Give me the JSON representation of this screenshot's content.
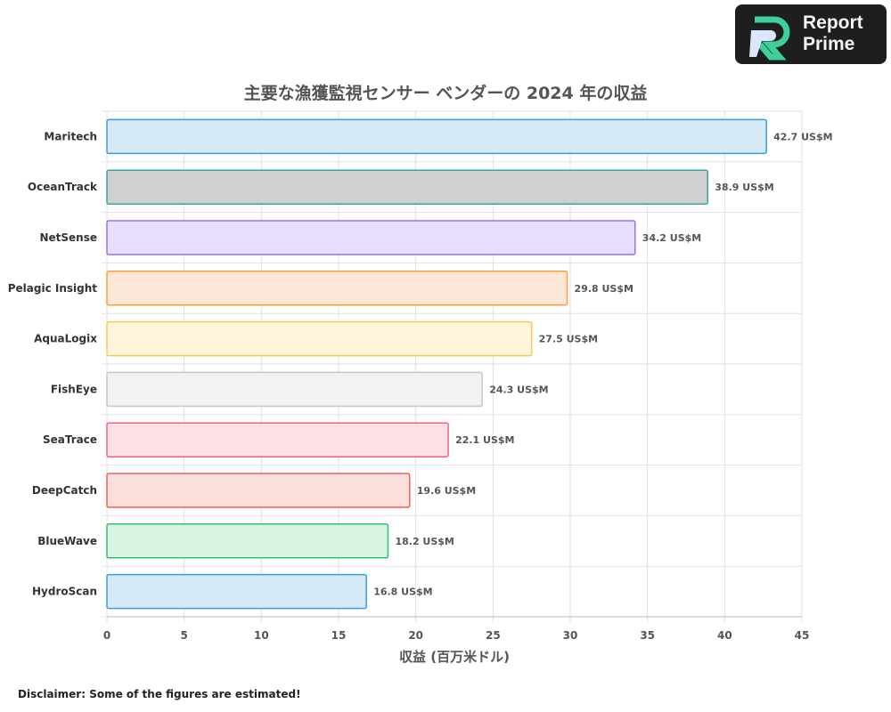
{
  "logo": {
    "line1": "Report",
    "line2": "Prime"
  },
  "disclaimer": "Disclaimer: Some of the figures are estimated!",
  "chart_data": {
    "type": "bar",
    "orientation": "horizontal",
    "title": "主要な漁獲監視センサー ベンダーの 2024 年の収益",
    "xlabel": "収益 (百万米ドル)",
    "ylabel": "",
    "xlim": [
      0,
      45
    ],
    "xticks": [
      0,
      5,
      10,
      15,
      20,
      25,
      30,
      35,
      40,
      45
    ],
    "grid": true,
    "value_suffix": " US$M",
    "categories": [
      "Maritech",
      "OceanTrack",
      "NetSense",
      "Pelagic Insight",
      "AquaLogix",
      "FishEye",
      "SeaTrace",
      "DeepCatch",
      "BlueWave",
      "HydroScan"
    ],
    "values": [
      42.7,
      38.9,
      34.2,
      29.8,
      27.5,
      24.3,
      22.1,
      19.6,
      18.2,
      16.8
    ],
    "fill_colors": [
      "#d6eaf8",
      "#cfd0cf",
      "#e8deff",
      "#fde8d6",
      "#fff4dc",
      "#f2f2f2",
      "#fde0e6",
      "#fde0dc",
      "#d8f5e3",
      "#d6eaf8"
    ],
    "border_colors": [
      "#3a9de0",
      "#3aa5a0",
      "#9a6ef0",
      "#f5a040",
      "#f8c850",
      "#c8c8c8",
      "#f56080",
      "#f06050",
      "#30c070",
      "#3a9de0"
    ]
  }
}
